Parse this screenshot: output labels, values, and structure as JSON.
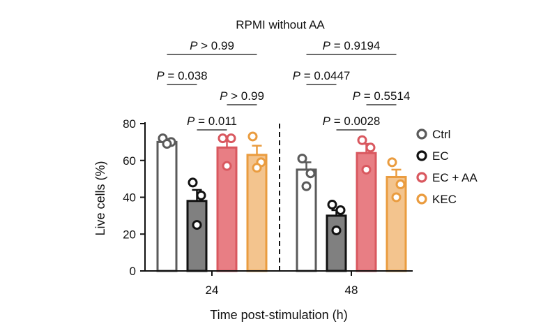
{
  "chart_data": {
    "type": "bar",
    "title": "RPMI without AA",
    "xlabel": "Time post-stimulation (h)",
    "ylabel": "Live cells (%)",
    "ylim": [
      0,
      80
    ],
    "yticks": [
      0,
      20,
      40,
      60,
      80
    ],
    "categories": [
      "24",
      "48"
    ],
    "legend_position": "right",
    "series": [
      {
        "name": "Ctrl",
        "fill": "#ffffff",
        "stroke": "#5a5a5a",
        "values": [
          70,
          55
        ],
        "errors": [
          1.5,
          4
        ],
        "points": [
          [
            72,
            70,
            69
          ],
          [
            61,
            53,
            46
          ]
        ]
      },
      {
        "name": "EC",
        "fill": "#808080",
        "stroke": "#111111",
        "values": [
          38,
          30
        ],
        "errors": [
          6,
          3
        ],
        "points": [
          [
            48,
            41,
            25
          ],
          [
            36,
            33,
            22
          ]
        ]
      },
      {
        "name": "EC + AA",
        "fill": "#e87e84",
        "stroke": "#d9585f",
        "values": [
          67,
          64
        ],
        "errors": [
          5,
          5
        ],
        "points": [
          [
            72,
            72,
            57
          ],
          [
            71,
            67,
            55
          ]
        ]
      },
      {
        "name": "KEC",
        "fill": "#f3c48e",
        "stroke": "#ea9c3f",
        "values": [
          63,
          51
        ],
        "errors": [
          5,
          4
        ],
        "points": [
          [
            73,
            59,
            56
          ],
          [
            59,
            47,
            40
          ]
        ]
      }
    ],
    "comparisons": [
      {
        "group": 0,
        "from": 0,
        "to": 3,
        "p_symbol": "P",
        "p_text": " > 0.99",
        "level": 4
      },
      {
        "group": 0,
        "from": 0,
        "to": 1,
        "p_symbol": "P",
        "p_text": " = 0.038",
        "level": 3
      },
      {
        "group": 0,
        "from": 2,
        "to": 3,
        "p_symbol": "P",
        "p_text": " > 0.99",
        "level": 2
      },
      {
        "group": 0,
        "from": 1,
        "to": 2,
        "p_symbol": "P",
        "p_text": " = 0.011",
        "level": 1
      },
      {
        "group": 1,
        "from": 0,
        "to": 3,
        "p_symbol": "P",
        "p_text": " = 0.9194",
        "level": 4
      },
      {
        "group": 1,
        "from": 0,
        "to": 1,
        "p_symbol": "P",
        "p_text": " = 0.0447",
        "level": 3
      },
      {
        "group": 1,
        "from": 2,
        "to": 3,
        "p_symbol": "P",
        "p_text": " = 0.5514",
        "level": 2
      },
      {
        "group": 1,
        "from": 1,
        "to": 2,
        "p_symbol": "P",
        "p_text": " = 0.0028",
        "level": 1
      }
    ]
  }
}
